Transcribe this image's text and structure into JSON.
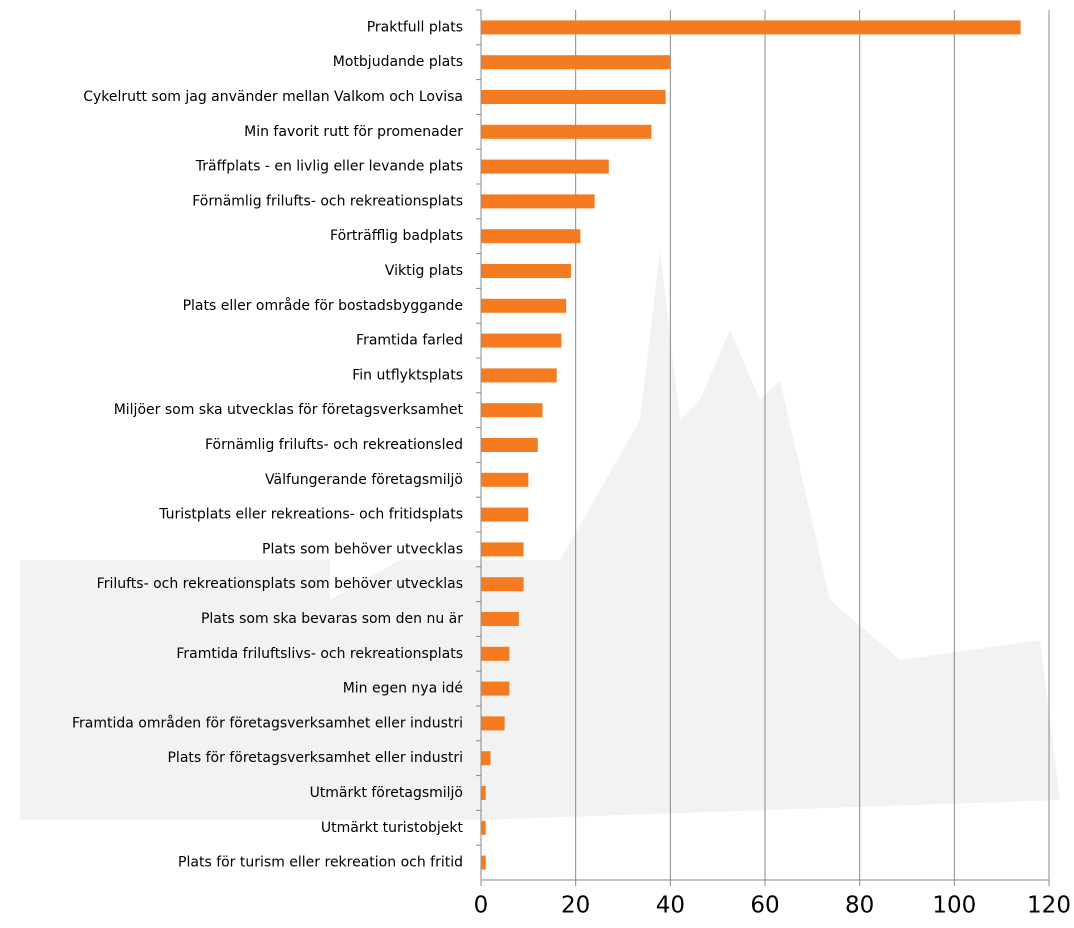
{
  "chart_data": {
    "type": "bar",
    "orientation": "horizontal",
    "categories": [
      "Praktfull plats",
      "Motbjudande plats",
      "Cykelrutt som jag använder mellan Valkom och Lovisa",
      "Min favorit rutt för promenader",
      "Träffplats - en livlig eller levande plats",
      "Förnämlig frilufts- och rekreationsplats",
      "Förträfflig badplats",
      "Viktig plats",
      "Plats eller område för bostadsbyggande",
      "Framtida farled",
      "Fin utflyktsplats",
      "Miljöer som ska utvecklas för företagsverksamhet",
      "Förnämlig frilufts- och rekreationsled",
      "Välfungerande företagsmiljö",
      "Turistplats eller rekreations- och fritidsplats",
      "Plats som behöver utvecklas",
      "Frilufts- och rekreationsplats som behöver utvecklas",
      "Plats som ska bevaras som den nu är",
      "Framtida friluftslivs- och rekreationsplats",
      "Min egen nya idé",
      "Framtida områden för företagsverksamhet eller industri",
      "Plats för företagsverksamhet eller industri",
      "Utmärkt företagsmiljö",
      "Utmärkt turistobjekt",
      "Plats för turism eller rekreation och fritid"
    ],
    "values": [
      114,
      40,
      39,
      36,
      27,
      24,
      21,
      19,
      18,
      17,
      16,
      13,
      12,
      10,
      10,
      9,
      9,
      8,
      6,
      6,
      5,
      2,
      1,
      1,
      1
    ],
    "color": "#f47b20",
    "xlim": [
      0,
      120
    ],
    "xticks": [
      0,
      20,
      40,
      60,
      80,
      100,
      120
    ],
    "grid": true
  }
}
